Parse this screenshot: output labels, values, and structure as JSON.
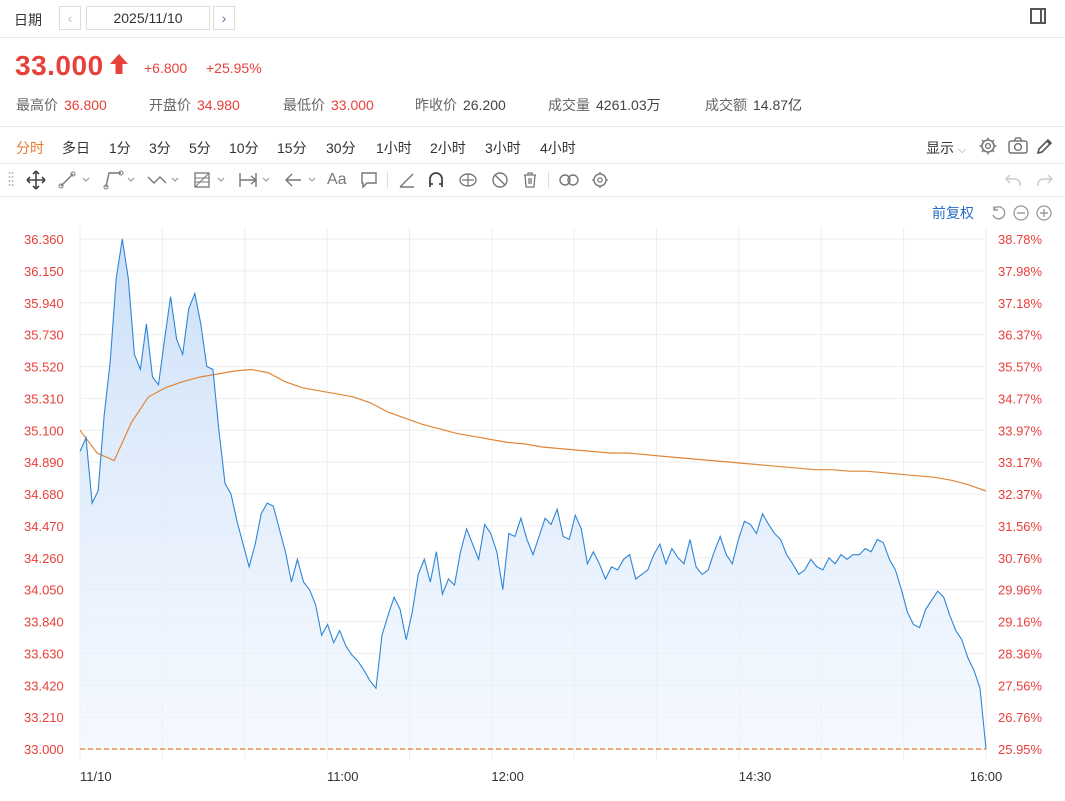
{
  "header": {
    "date_label": "日期",
    "prev": "‹",
    "date_value": "2025/11/10",
    "next": "›"
  },
  "quote": {
    "price": "33.000",
    "change": "+6.800",
    "change_pct": "+25.95%",
    "stats": [
      {
        "label": "最高价",
        "value": "36.800",
        "color": "red"
      },
      {
        "label": "开盘价",
        "value": "34.980",
        "color": "red"
      },
      {
        "label": "最低价",
        "value": "33.000",
        "color": "red"
      },
      {
        "label": "昨收价",
        "value": "26.200",
        "color": "dark"
      },
      {
        "label": "成交量",
        "value": "4261.03万",
        "color": "dark"
      },
      {
        "label": "成交额",
        "value": "14.87亿",
        "color": "dark"
      }
    ]
  },
  "tabs": [
    "分时",
    "多日",
    "1分",
    "3分",
    "5分",
    "10分",
    "15分",
    "30分",
    "1小时",
    "2小时",
    "3小时",
    "4小时"
  ],
  "active_tab": "分时",
  "toolbar": {
    "display": "显示",
    "aa": "Aa",
    "qfq": "前复权"
  },
  "colors": {
    "up": "#e8403b",
    "price_line": "#2f86d6",
    "avg_line": "#e0873a",
    "fill": "#dbe9fb",
    "accent": "#e8772e",
    "link": "#2b6cc4"
  },
  "chart_data": {
    "type": "line",
    "grid": true,
    "x_ticks": [
      "11/10",
      "11:00",
      "12:00",
      "14:30",
      "16:00"
    ],
    "y_ticks_left": [
      "36.360",
      "36.150",
      "35.940",
      "35.730",
      "35.520",
      "35.310",
      "35.100",
      "34.890",
      "34.680",
      "34.470",
      "34.260",
      "34.050",
      "33.840",
      "33.630",
      "33.420",
      "33.210",
      "33.000"
    ],
    "y_ticks_right": [
      "38.78%",
      "37.98%",
      "37.18%",
      "36.37%",
      "35.57%",
      "34.77%",
      "33.97%",
      "33.17%",
      "32.37%",
      "31.56%",
      "30.76%",
      "29.96%",
      "29.16%",
      "28.36%",
      "27.56%",
      "26.76%",
      "25.95%"
    ],
    "ylim": [
      33.0,
      36.36
    ],
    "reference_line": 33.0,
    "series": [
      {
        "role": "price",
        "values": [
          34.96,
          35.05,
          34.62,
          34.7,
          35.2,
          35.55,
          36.1,
          36.36,
          36.1,
          35.6,
          35.5,
          35.8,
          35.45,
          35.4,
          35.7,
          35.98,
          35.7,
          35.6,
          35.9,
          36.0,
          35.8,
          35.52,
          35.5,
          35.1,
          34.75,
          34.68,
          34.5,
          34.35,
          34.2,
          34.35,
          34.55,
          34.62,
          34.6,
          34.45,
          34.3,
          34.1,
          34.25,
          34.1,
          34.05,
          33.95,
          33.75,
          33.82,
          33.7,
          33.78,
          33.68,
          33.62,
          33.58,
          33.52,
          33.45,
          33.4,
          33.75,
          33.88,
          34.0,
          33.92,
          33.72,
          33.9,
          34.15,
          34.25,
          34.1,
          34.3,
          34.02,
          34.12,
          34.08,
          34.3,
          34.45,
          34.35,
          34.25,
          34.48,
          34.42,
          34.3,
          34.05,
          34.42,
          34.4,
          34.52,
          34.38,
          34.28,
          34.4,
          34.52,
          34.48,
          34.58,
          34.4,
          34.38,
          34.54,
          34.45,
          34.22,
          34.3,
          34.22,
          34.12,
          34.2,
          34.18,
          34.25,
          34.28,
          34.12,
          34.15,
          34.18,
          34.28,
          34.35,
          34.22,
          34.32,
          34.26,
          34.22,
          34.38,
          34.2,
          34.15,
          34.18,
          34.3,
          34.4,
          34.28,
          34.22,
          34.38,
          34.5,
          34.48,
          34.42,
          34.55,
          34.48,
          34.42,
          34.38,
          34.28,
          34.22,
          34.15,
          34.18,
          34.25,
          34.2,
          34.18,
          34.26,
          34.22,
          34.28,
          34.25,
          34.28,
          34.28,
          34.32,
          34.3,
          34.38,
          34.36,
          34.25,
          34.18,
          34.05,
          33.9,
          33.82,
          33.8,
          33.92,
          33.98,
          34.04,
          34.0,
          33.88,
          33.78,
          33.72,
          33.6,
          33.52,
          33.4,
          33.0
        ],
        "note": "minute price sampled across the session"
      },
      {
        "role": "average",
        "values": [
          35.1,
          34.95,
          34.9,
          35.15,
          35.32,
          35.38,
          35.42,
          35.45,
          35.47,
          35.49,
          35.5,
          35.48,
          35.42,
          35.38,
          35.36,
          35.34,
          35.32,
          35.28,
          35.22,
          35.18,
          35.14,
          35.11,
          35.08,
          35.06,
          35.04,
          35.02,
          35.01,
          34.99,
          34.98,
          34.97,
          34.96,
          34.95,
          34.95,
          34.94,
          34.93,
          34.92,
          34.91,
          34.9,
          34.89,
          34.88,
          34.87,
          34.86,
          34.85,
          34.84,
          34.84,
          34.83,
          34.83,
          34.82,
          34.81,
          34.8,
          34.79,
          34.77,
          34.74,
          34.7
        ]
      }
    ]
  }
}
